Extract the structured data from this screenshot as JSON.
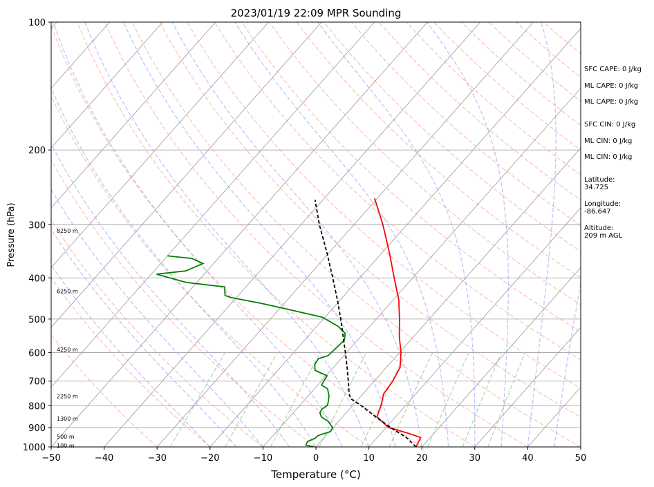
{
  "chart_data": {
    "type": "line",
    "chart_kind": "skew-T log-P sounding",
    "title": "2023/01/19 22:09 MPR Sounding",
    "xlabel": "Temperature (°C)",
    "ylabel": "Pressure (hPa)",
    "xlim": [
      -50,
      50
    ],
    "ylim": [
      1000,
      100
    ],
    "y_scale": "log",
    "x_ticks": [
      "−50",
      "−40",
      "−30",
      "−20",
      "−10",
      "0",
      "10",
      "20",
      "30",
      "40",
      "50"
    ],
    "y_ticks": [
      "100",
      "200",
      "300",
      "400",
      "500",
      "600",
      "700",
      "800",
      "900",
      "1000"
    ],
    "grid": true,
    "series": [
      {
        "key": "temperature",
        "color": "#ff0000",
        "style": "solid",
        "points": [
          [
            1000,
            18.9
          ],
          [
            950,
            18.2
          ],
          [
            925,
            14.6
          ],
          [
            900,
            10.5
          ],
          [
            850,
            6.5
          ],
          [
            800,
            5.4
          ],
          [
            750,
            3.9
          ],
          [
            700,
            3.5
          ],
          [
            650,
            2.6
          ],
          [
            600,
            0.3
          ],
          [
            550,
            -2.7
          ],
          [
            500,
            -5.6
          ],
          [
            450,
            -9.0
          ],
          [
            400,
            -13.5
          ],
          [
            350,
            -18.5
          ],
          [
            300,
            -24.5
          ],
          [
            270,
            -28.9
          ],
          [
            260,
            -30.5
          ]
        ]
      },
      {
        "key": "dewpoint",
        "color": "#008000",
        "style": "solid",
        "points": [
          [
            1000,
            -0.4
          ],
          [
            990,
            -2.2
          ],
          [
            970,
            -2.5
          ],
          [
            955,
            -1.6
          ],
          [
            940,
            -1.5
          ],
          [
            920,
            0.2
          ],
          [
            900,
            -0.1
          ],
          [
            870,
            -2.0
          ],
          [
            850,
            -4.0
          ],
          [
            830,
            -5.0
          ],
          [
            815,
            -5.2
          ],
          [
            800,
            -4.8
          ],
          [
            790,
            -5.0
          ],
          [
            760,
            -6.0
          ],
          [
            730,
            -7.5
          ],
          [
            715,
            -9.3
          ],
          [
            700,
            -9.5
          ],
          [
            680,
            -9.8
          ],
          [
            660,
            -13.0
          ],
          [
            640,
            -14.0
          ],
          [
            620,
            -14.3
          ],
          [
            610,
            -13.0
          ],
          [
            590,
            -12.8
          ],
          [
            560,
            -12.5
          ],
          [
            540,
            -13.5
          ],
          [
            520,
            -16.0
          ],
          [
            495,
            -20.5
          ],
          [
            475,
            -28.0
          ],
          [
            460,
            -34.0
          ],
          [
            445,
            -41.0
          ],
          [
            440,
            -42.5
          ],
          [
            420,
            -44.0
          ],
          [
            410,
            -52.0
          ],
          [
            392,
            -59.0
          ],
          [
            385,
            -54.0
          ],
          [
            370,
            -52.0
          ],
          [
            360,
            -55.0
          ],
          [
            355,
            -60.0
          ]
        ]
      },
      {
        "key": "parcel",
        "color": "#000000",
        "style": "dashed",
        "points": [
          [
            1000,
            18.9
          ],
          [
            950,
            15.5
          ],
          [
            900,
            10.8
          ],
          [
            850,
            6.3
          ],
          [
            800,
            1.7
          ],
          [
            770,
            -1.5
          ],
          [
            750,
            -2.6
          ],
          [
            700,
            -4.9
          ],
          [
            650,
            -7.4
          ],
          [
            600,
            -10.2
          ],
          [
            550,
            -13.3
          ],
          [
            500,
            -16.7
          ],
          [
            450,
            -20.6
          ],
          [
            400,
            -25.1
          ],
          [
            350,
            -30.3
          ],
          [
            300,
            -36.5
          ],
          [
            262,
            -41.5
          ]
        ]
      }
    ],
    "height_labels": [
      {
        "text": "100 m",
        "p": 992
      },
      {
        "text": "500 m",
        "p": 945
      },
      {
        "text": "1300 m",
        "p": 857
      },
      {
        "text": "2250 m",
        "p": 760
      },
      {
        "text": "4250 m",
        "p": 590
      },
      {
        "text": "6250 m",
        "p": 430
      },
      {
        "text": "8250 m",
        "p": 310
      }
    ],
    "annotations": [
      "SFC CAPE: 0 J/kg",
      "ML CAPE: 0 J/kg",
      "ML CAPE: 0 J/kg",
      "SFC CIN: 0 J/kg",
      "ML CIN: 0 J/kg",
      "ML CIN: 0 J/kg"
    ],
    "latitude_label": "Latitude:",
    "latitude_value": "34.725",
    "longitude_label": "Longitude:",
    "longitude_value": "-86.647",
    "altitude_label": "Altitude:",
    "altitude_value": "209 m AGL",
    "background_lines": {
      "dry_adiabat_color": "#ff9999",
      "moist_adiabat_color": "#9999ff",
      "mixing_ratio_color": "#80c080",
      "isotherm_color": "#999999"
    }
  }
}
